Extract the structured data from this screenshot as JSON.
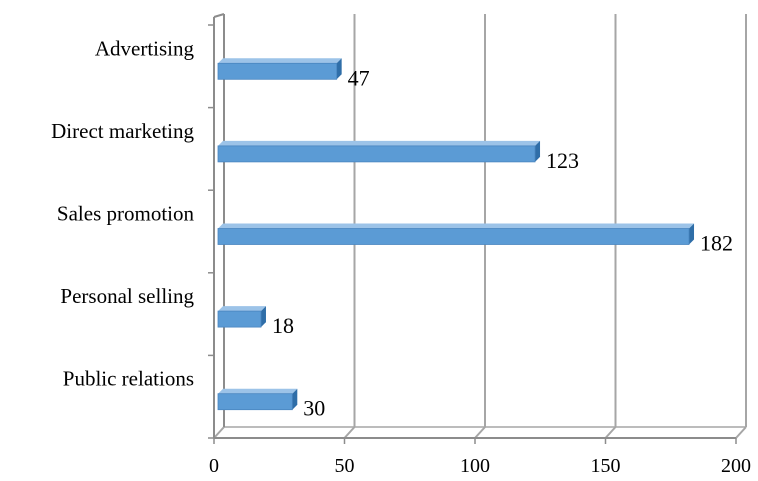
{
  "chart_data": {
    "type": "bar",
    "orientation": "horizontal",
    "categories": [
      "Advertising",
      "Direct marketing",
      "Sales promotion",
      "Personal selling",
      "Public relations"
    ],
    "values": [
      47,
      123,
      182,
      18,
      30
    ],
    "data_labels": [
      "47",
      "123",
      "182",
      "18",
      "30"
    ],
    "xlim": [
      0,
      200
    ],
    "xticks": [
      0,
      50,
      100,
      150,
      200
    ],
    "xtick_labels": [
      "0",
      "50",
      "100",
      "150",
      "200"
    ],
    "title": "",
    "xlabel": "",
    "ylabel": "",
    "grid": true,
    "legend": "none",
    "style": "3d",
    "colors": {
      "bar_front": "#5b9bd5",
      "bar_top": "#9cc3e8",
      "bar_side": "#2f6ea8",
      "grid": "#a6a6a6",
      "axis": "#8c8c8c"
    }
  }
}
